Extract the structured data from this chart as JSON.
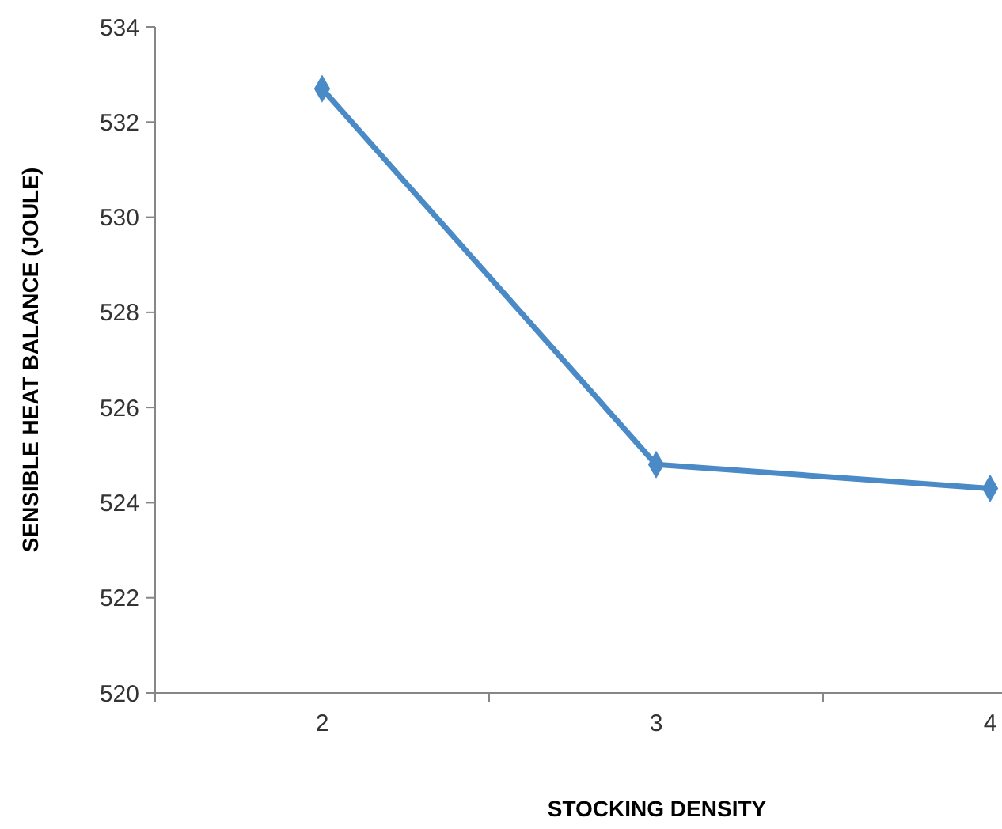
{
  "chart_data": {
    "type": "line",
    "xlabel": "STOCKING DENSITY",
    "ylabel": "SENSIBLE HEAT BALANCE (JOULE)",
    "categories": [
      "2",
      "3",
      "4"
    ],
    "series": [
      {
        "color": "#4a8ac6",
        "values": [
          532.7,
          524.8,
          524.3
        ]
      }
    ],
    "ylim": [
      520,
      534
    ],
    "yticks": [
      520,
      522,
      524,
      526,
      528,
      530,
      532,
      534
    ],
    "grid": false,
    "marker": "diamond",
    "line_style": "solid"
  }
}
